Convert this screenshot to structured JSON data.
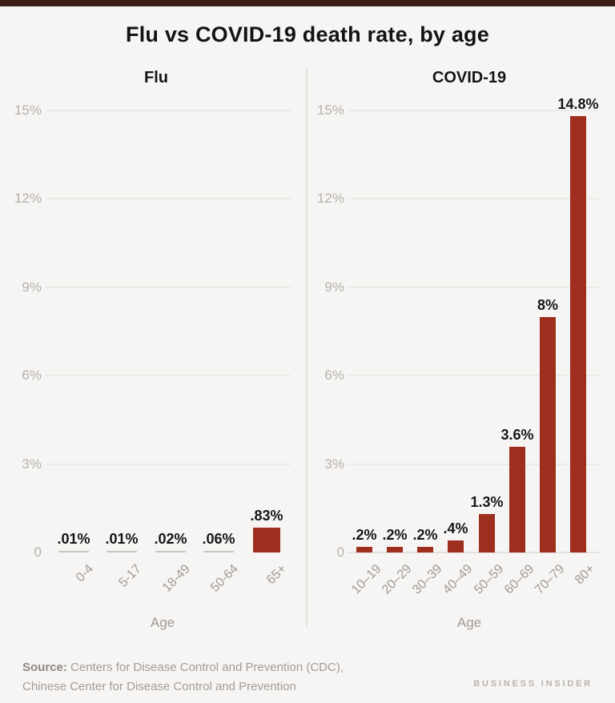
{
  "page": {
    "title": "Flu vs COVID-19 death rate, by age",
    "source_label": "Source:",
    "source_line1": "Centers for Disease Control and Prevention (CDC),",
    "source_line2": "Chinese Center for Disease Control and Prevention",
    "brand": "BUSINESS INSIDER"
  },
  "colors": {
    "bar_red": "#9e2e1d",
    "near_zero_bar_gray": "#c7c3c0",
    "top_strip": "#3b1c16",
    "background": "#f7f5f3",
    "gridline": "#eceae7",
    "axis_text": "#b4b1ae",
    "tick_text": "#9e9a97",
    "value_text": "#161616",
    "footer_text": "#a09c99"
  },
  "chart_data": [
    {
      "type": "bar",
      "title": "Flu",
      "categories": [
        "0-4",
        "5-17",
        "18-49",
        "50-64",
        "65+"
      ],
      "values": [
        0.01,
        0.01,
        0.02,
        0.06,
        0.83
      ],
      "value_labels": [
        ".01%",
        ".01%",
        ".02%",
        ".06%",
        ".83%"
      ],
      "xlabel": "Age",
      "ylabel": "",
      "ylim": [
        0,
        15
      ],
      "yticks": [
        "0",
        "3%",
        "6%",
        "9%",
        "12%",
        "15%"
      ],
      "grid": true,
      "zeroline": false,
      "legend": "none"
    },
    {
      "type": "bar",
      "title": "COVID-19",
      "categories": [
        "10–19",
        "20–29",
        "30–39",
        "40–49",
        "50–59",
        "60–69",
        "70–79",
        "80+"
      ],
      "values": [
        0.2,
        0.2,
        0.2,
        0.4,
        1.3,
        3.6,
        8,
        14.8
      ],
      "value_labels": [
        ".2%",
        ".2%",
        ".2%",
        ".4%",
        "1.3%",
        "3.6%",
        "8%",
        "14.8%"
      ],
      "xlabel": "Age",
      "ylabel": "",
      "ylim": [
        0,
        15
      ],
      "yticks": [
        "0",
        "3%",
        "6%",
        "9%",
        "12%",
        "15%"
      ],
      "grid": true,
      "zeroline": true,
      "legend": "none"
    }
  ]
}
